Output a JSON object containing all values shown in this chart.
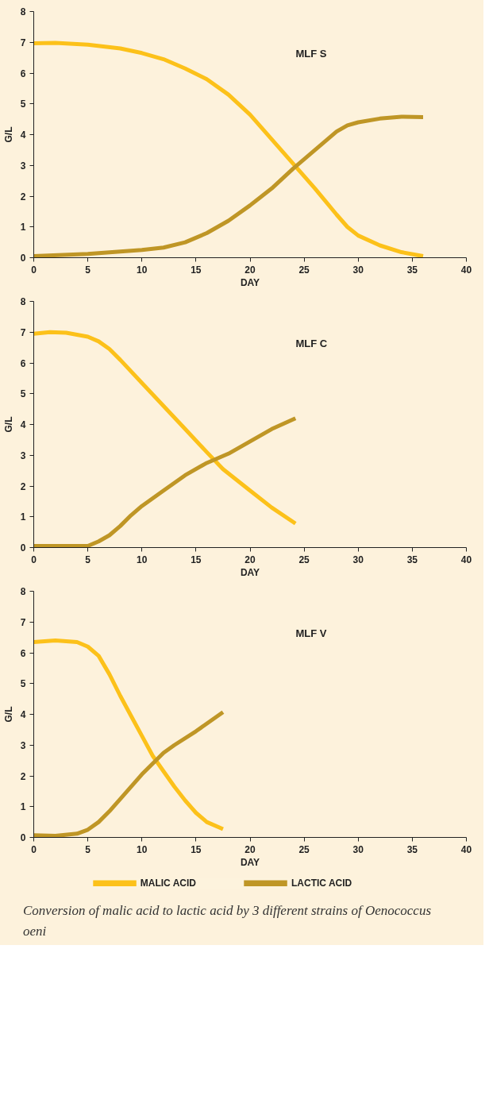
{
  "chart_data": [
    {
      "type": "line",
      "title": "MLF S",
      "xlabel": "DAY",
      "ylabel": "G/L",
      "xlim": [
        0,
        40
      ],
      "ylim": [
        0,
        8
      ],
      "xticks": [
        0,
        5,
        10,
        15,
        20,
        25,
        30,
        35,
        40
      ],
      "yticks": [
        0,
        1,
        2,
        3,
        4,
        5,
        6,
        7,
        8
      ],
      "grid": false,
      "line_style": "solid",
      "marker": "none",
      "series": [
        {
          "color": "#fcc11a",
          "x": [
            0,
            2,
            5,
            8,
            10,
            12,
            14,
            16,
            18,
            20,
            22,
            24,
            26,
            28,
            29,
            30,
            32,
            34,
            36
          ],
          "values": [
            6.97,
            6.98,
            6.92,
            6.8,
            6.65,
            6.45,
            6.15,
            5.8,
            5.3,
            4.65,
            3.85,
            3.05,
            2.25,
            1.4,
            1.0,
            0.72,
            0.4,
            0.18,
            0.05
          ]
        },
        {
          "color": "#bf9626",
          "x": [
            0,
            5,
            10,
            12,
            14,
            16,
            18,
            20,
            22,
            24,
            26,
            28,
            29,
            30,
            32,
            34,
            36
          ],
          "values": [
            0.05,
            0.12,
            0.25,
            0.33,
            0.5,
            0.8,
            1.2,
            1.7,
            2.25,
            2.9,
            3.5,
            4.1,
            4.3,
            4.4,
            4.52,
            4.58,
            4.57
          ]
        }
      ]
    },
    {
      "type": "line",
      "title": "MLF C",
      "xlabel": "DAY",
      "ylabel": "G/L",
      "xlim": [
        0,
        40
      ],
      "ylim": [
        0,
        8
      ],
      "xticks": [
        0,
        5,
        10,
        15,
        20,
        25,
        30,
        35,
        40
      ],
      "yticks": [
        0,
        1,
        2,
        3,
        4,
        5,
        6,
        7,
        8
      ],
      "grid": false,
      "line_style": "solid",
      "marker": "none",
      "series": [
        {
          "color": "#fcc11a",
          "x": [
            0,
            1.5,
            3,
            5,
            6,
            7,
            8,
            10,
            12,
            14,
            16,
            17.5,
            20,
            22,
            24.2
          ],
          "values": [
            6.95,
            7.0,
            6.98,
            6.85,
            6.7,
            6.45,
            6.1,
            5.35,
            4.6,
            3.85,
            3.1,
            2.55,
            1.85,
            1.3,
            0.78
          ]
        },
        {
          "color": "#bf9626",
          "x": [
            0,
            5,
            6,
            7,
            8,
            9,
            10,
            12,
            14,
            16,
            18,
            20,
            22,
            24.2
          ],
          "values": [
            0.05,
            0.05,
            0.2,
            0.4,
            0.7,
            1.05,
            1.35,
            1.85,
            2.35,
            2.75,
            3.05,
            3.45,
            3.85,
            4.2
          ]
        }
      ]
    },
    {
      "type": "line",
      "title": "MLF V",
      "xlabel": "DAY",
      "ylabel": "G/L",
      "xlim": [
        0,
        40
      ],
      "ylim": [
        0,
        8
      ],
      "xticks": [
        0,
        5,
        10,
        15,
        20,
        25,
        30,
        35,
        40
      ],
      "yticks": [
        0,
        1,
        2,
        3,
        4,
        5,
        6,
        7,
        8
      ],
      "grid": false,
      "line_style": "solid",
      "marker": "none",
      "legend": "bottom",
      "annotations": [
        "Conversion of malic acid to lactic acid by 3 different strains of Oenococcus oeni"
      ],
      "series": [
        {
          "name": "MALIC ACID",
          "color": "#fcc11a",
          "x": [
            0,
            2,
            4,
            5,
            6,
            7,
            8,
            9,
            10,
            11,
            12,
            13,
            14,
            15,
            16,
            17.5
          ],
          "values": [
            6.35,
            6.4,
            6.35,
            6.2,
            5.9,
            5.3,
            4.6,
            3.95,
            3.3,
            2.65,
            2.15,
            1.65,
            1.2,
            0.8,
            0.5,
            0.27
          ]
        },
        {
          "name": "LACTIC ACID",
          "color": "#bf9626",
          "x": [
            0,
            2,
            4,
            5,
            6,
            7,
            8,
            9,
            10,
            11,
            12,
            13,
            15,
            17.5
          ],
          "values": [
            0.07,
            0.05,
            0.12,
            0.25,
            0.5,
            0.85,
            1.25,
            1.65,
            2.05,
            2.4,
            2.75,
            3.0,
            3.45,
            4.07
          ]
        }
      ]
    }
  ]
}
